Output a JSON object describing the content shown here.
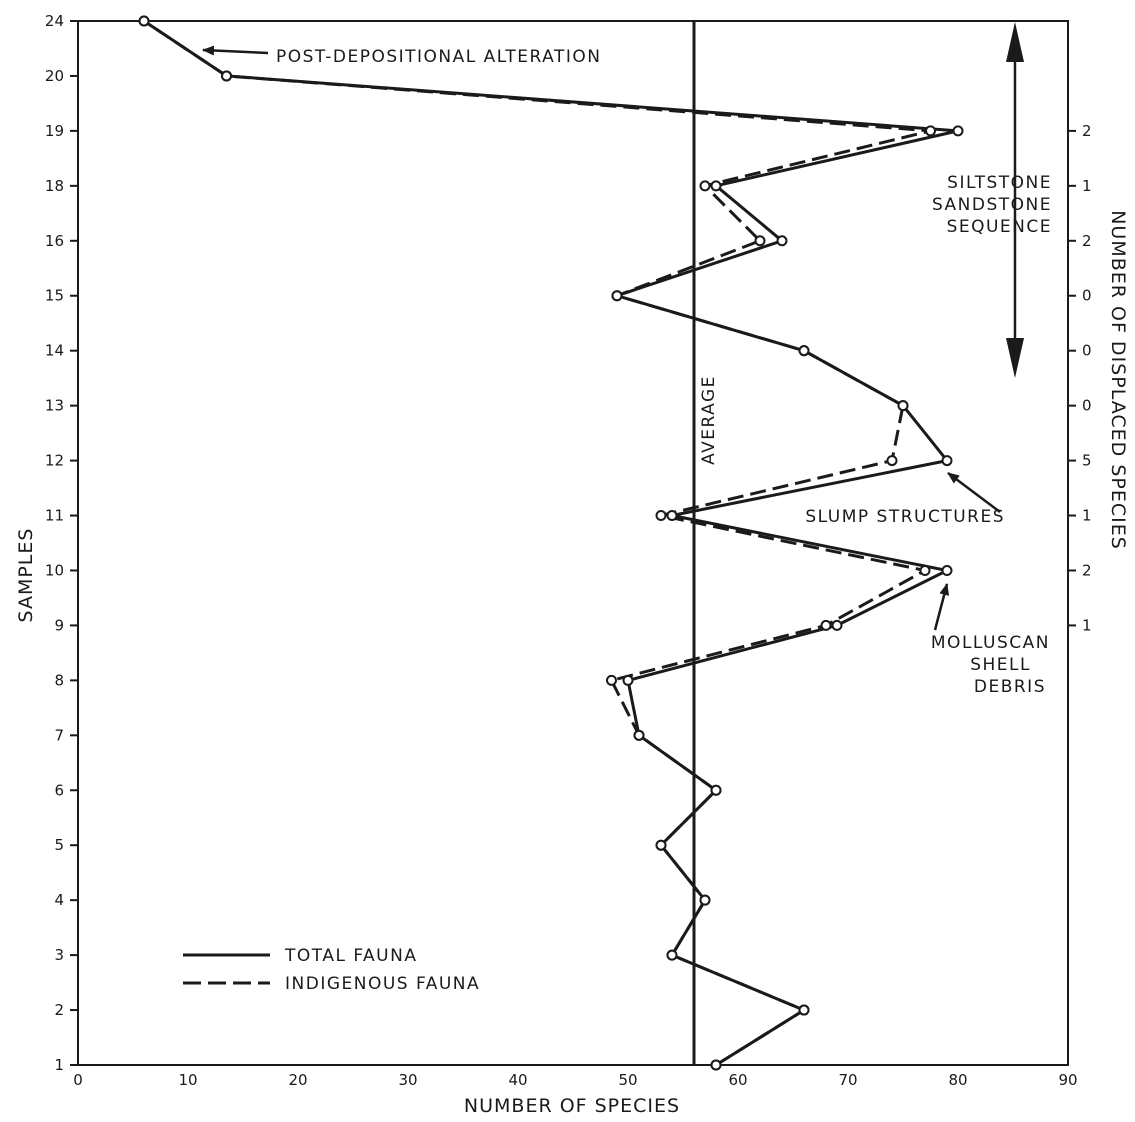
{
  "chart_data": {
    "type": "line",
    "xlabel": "NUMBER OF SPECIES",
    "ylabel": "SAMPLES",
    "right_label": "NUMBER OF DISPLACED SPECIES",
    "xlim": [
      0,
      90
    ],
    "x_ticks": [
      0,
      10,
      20,
      30,
      40,
      50,
      60,
      70,
      80,
      90
    ],
    "samples": [
      "1",
      "2",
      "3",
      "4",
      "5",
      "6",
      "7",
      "8",
      "9",
      "10",
      "11",
      "12",
      "13",
      "14",
      "15",
      "16",
      "18",
      "19",
      "20",
      "24"
    ],
    "series": [
      {
        "name": "TOTAL FAUNA",
        "style": "solid",
        "values": [
          58,
          66,
          54,
          57,
          53,
          58,
          51,
          50,
          69,
          79,
          54,
          79,
          75,
          66,
          49,
          64,
          58,
          80,
          13.5,
          6
        ]
      },
      {
        "name": "INDIGENOUS FAUNA",
        "style": "dashed",
        "values": [
          58,
          66,
          54,
          57,
          53,
          58,
          51,
          48.5,
          68,
          77,
          53,
          74,
          75,
          66,
          49,
          62,
          57,
          77.5,
          13.5,
          6
        ]
      }
    ],
    "average": {
      "label": "AVERAGE",
      "value": 56
    },
    "displaced_species": [
      {
        "sample": "9",
        "count": "1"
      },
      {
        "sample": "10",
        "count": "2"
      },
      {
        "sample": "11",
        "count": "1"
      },
      {
        "sample": "12",
        "count": "5"
      },
      {
        "sample": "13",
        "count": "0"
      },
      {
        "sample": "14",
        "count": "0"
      },
      {
        "sample": "15",
        "count": "0"
      },
      {
        "sample": "16",
        "count": "2"
      },
      {
        "sample": "18",
        "count": "1"
      },
      {
        "sample": "19",
        "count": "2"
      }
    ],
    "annotations": {
      "post_depositional": "POST-DEPOSITIONAL ALTERATION",
      "siltstone": [
        "SILTSTONE",
        "SANDSTONE",
        "SEQUENCE"
      ],
      "slump": "SLUMP STRUCTURES",
      "molluscan": [
        "MOLLUSCAN",
        "SHELL",
        "DEBRIS"
      ]
    },
    "grid": false,
    "legend_position": "bottom-left"
  }
}
